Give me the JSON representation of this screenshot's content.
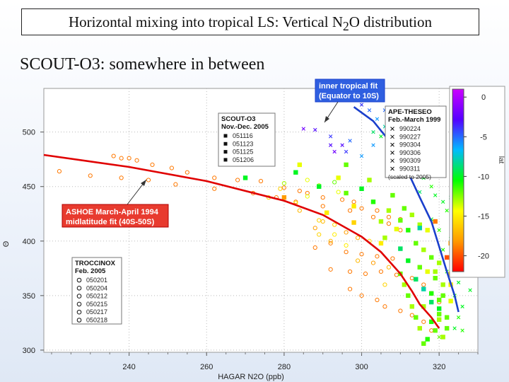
{
  "slide": {
    "title_pre": "Horizontal mixing into tropical LS:  Vertical N",
    "title_sub": "2",
    "title_post": "O distribution",
    "subtitle": "SCOUT-O3:  somewhere in between"
  },
  "chart_data": {
    "type": "scatter",
    "xlabel": "HAGAR N2O (ppb)",
    "ylabel": "Θ",
    "xlim": [
      218,
      330
    ],
    "ylim": [
      298,
      540
    ],
    "xticks": [
      240,
      260,
      280,
      300,
      320
    ],
    "yticks": [
      300,
      350,
      400,
      450,
      500
    ],
    "grid": true,
    "colorbar": {
      "label": "lat",
      "ticks": [
        0,
        -5,
        -10,
        -15,
        -20
      ],
      "range": [
        1,
        -22
      ],
      "colors": [
        "#ff0000",
        "#ff9900",
        "#ffff00",
        "#00ff00",
        "#00bbff",
        "#5500ff",
        "#cc00ff"
      ]
    },
    "fits": [
      {
        "name": "ASHOE March-April 1994\nmidlatitude fit (40S-50S)",
        "color": "#e00000",
        "points": [
          [
            218,
            479
          ],
          [
            240,
            468
          ],
          [
            260,
            455
          ],
          [
            280,
            437
          ],
          [
            290,
            424
          ],
          [
            300,
            404
          ],
          [
            305,
            390
          ],
          [
            310,
            370
          ],
          [
            313,
            354
          ],
          [
            315,
            342
          ],
          [
            318,
            330
          ],
          [
            320,
            320
          ]
        ]
      },
      {
        "name": "inner tropical fit\n(Equator to 10S)",
        "color": "#1a3fcc",
        "points": [
          [
            298,
            523
          ],
          [
            303,
            510
          ],
          [
            308,
            488
          ],
          [
            312,
            463
          ],
          [
            315,
            440
          ],
          [
            318,
            418
          ],
          [
            320,
            395
          ],
          [
            322,
            372
          ],
          [
            324,
            350
          ],
          [
            325,
            335
          ]
        ]
      }
    ],
    "legends": [
      {
        "title": "SCOUT-O3\nNov.-Dec. 2005",
        "marker": "square",
        "entries": [
          "051116",
          "051123",
          "051125",
          "051206"
        ]
      },
      {
        "title": "APE-THESEO\nFeb.-March 1999",
        "marker": "cross",
        "entries": [
          "990224",
          "990227",
          "990304",
          "990306",
          "990309",
          "990311"
        ],
        "note": "(scaled to 2005)"
      },
      {
        "title": "TROCCINOX\nFeb. 2005",
        "marker": "circle",
        "entries": [
          "050201",
          "050204",
          "050212",
          "050215",
          "050217",
          "050218"
        ]
      }
    ],
    "series": [
      {
        "name": "SCOUT-O3",
        "marker": "square",
        "points": [
          [
            313,
            424,
            -13
          ],
          [
            315,
            415,
            -13
          ],
          [
            317,
            410,
            -14
          ],
          [
            314,
            398,
            -12
          ],
          [
            316,
            392,
            -13
          ],
          [
            318,
            385,
            -12
          ],
          [
            320,
            380,
            -13
          ],
          [
            317,
            372,
            -14
          ],
          [
            319,
            366,
            -12
          ],
          [
            321,
            360,
            -13
          ],
          [
            318,
            352,
            -11
          ],
          [
            320,
            346,
            -12
          ],
          [
            316,
            340,
            -13
          ],
          [
            320,
            333,
            -12
          ],
          [
            318,
            326,
            -11
          ],
          [
            322,
            320,
            -12
          ],
          [
            321,
            312,
            -13
          ],
          [
            316,
            306,
            -12
          ],
          [
            309,
            411,
            -14
          ],
          [
            306,
            403,
            -13
          ],
          [
            311,
            430,
            -12
          ],
          [
            303,
            436,
            -11
          ],
          [
            298,
            432,
            -15
          ],
          [
            300,
            448,
            -10
          ],
          [
            294,
            458,
            -14
          ],
          [
            289,
            450,
            -10
          ],
          [
            280,
            440,
            -18
          ],
          [
            296,
            444,
            -12
          ],
          [
            323,
            398,
            -18
          ],
          [
            322,
            385,
            -20
          ],
          [
            323,
            370,
            -17
          ],
          [
            319,
            418,
            -19
          ],
          [
            315,
            412,
            -8
          ],
          [
            310,
            393,
            -9
          ],
          [
            312,
            382,
            -10
          ],
          [
            314,
            365,
            -9
          ],
          [
            316,
            356,
            -8
          ],
          [
            318,
            344,
            -9
          ],
          [
            320,
            338,
            -10
          ],
          [
            312,
            410,
            -11
          ],
          [
            310,
            419,
            -12
          ],
          [
            307,
            428,
            -13
          ],
          [
            305,
            418,
            -13
          ],
          [
            308,
            442,
            -12
          ],
          [
            302,
            456,
            -13
          ],
          [
            296,
            470,
            -12
          ],
          [
            284,
            470,
            -14
          ],
          [
            270,
            458,
            -10
          ],
          [
            283,
            463,
            -10
          ],
          [
            291,
            426,
            -15
          ],
          [
            298,
            417,
            -16
          ],
          [
            305,
            398,
            -15
          ],
          [
            315,
            376,
            -12
          ],
          [
            319,
            372,
            -13
          ],
          [
            321,
            350,
            -12
          ],
          [
            320,
            328,
            -13
          ],
          [
            319,
            318,
            -12
          ],
          [
            317,
            310,
            -11
          ],
          [
            315,
            320,
            -13
          ],
          [
            314,
            330,
            -12
          ],
          [
            313,
            340,
            -13
          ],
          [
            312,
            350,
            -12
          ],
          [
            311,
            360,
            -13
          ],
          [
            310,
            370,
            -12
          ],
          [
            323,
            345,
            -14
          ],
          [
            323,
            360,
            -15
          ],
          [
            322,
            330,
            -12
          ]
        ]
      },
      {
        "name": "APE-THESEO",
        "marker": "cross",
        "points": [
          [
            300,
            525,
            -4
          ],
          [
            302,
            520,
            -5
          ],
          [
            304,
            512,
            -6
          ],
          [
            306,
            505,
            -8
          ],
          [
            303,
            500,
            -9
          ],
          [
            305,
            496,
            -10
          ],
          [
            308,
            492,
            -10
          ],
          [
            310,
            488,
            -11
          ],
          [
            312,
            480,
            -10
          ],
          [
            314,
            470,
            -10
          ],
          [
            313,
            462,
            -11
          ],
          [
            316,
            458,
            -10
          ],
          [
            318,
            450,
            -11
          ],
          [
            319,
            442,
            -10
          ],
          [
            321,
            436,
            -10
          ],
          [
            322,
            428,
            -11
          ],
          [
            318,
            420,
            -10
          ],
          [
            320,
            410,
            -11
          ],
          [
            323,
            402,
            -10
          ],
          [
            321,
            392,
            -11
          ],
          [
            324,
            384,
            -10
          ],
          [
            322,
            372,
            -11
          ],
          [
            325,
            362,
            -10
          ],
          [
            324,
            350,
            -11
          ],
          [
            326,
            340,
            -10
          ],
          [
            325,
            330,
            -11
          ],
          [
            324,
            320,
            -10
          ],
          [
            320,
            312,
            -12
          ],
          [
            297,
            492,
            -5
          ],
          [
            295,
            488,
            -3
          ],
          [
            293,
            482,
            -2
          ],
          [
            292,
            496,
            -4
          ],
          [
            288,
            502,
            -3
          ],
          [
            285,
            503,
            -2
          ],
          [
            309,
            472,
            -8
          ],
          [
            311,
            462,
            -9
          ],
          [
            315,
            445,
            -9
          ],
          [
            300,
            478,
            -6
          ],
          [
            296,
            482,
            -4
          ],
          [
            292,
            488,
            -3
          ],
          [
            303,
            488,
            -6
          ],
          [
            307,
            478,
            -8
          ],
          [
            317,
            462,
            -9
          ],
          [
            316,
            476,
            -9
          ],
          [
            311,
            498,
            -7
          ],
          [
            309,
            515,
            -6
          ],
          [
            306,
            520,
            -5
          ],
          [
            301,
            530,
            -3
          ],
          [
            324,
            455,
            -10
          ],
          [
            326,
            460,
            -10
          ],
          [
            327,
            425,
            -10
          ],
          [
            323,
            440,
            -9
          ],
          [
            328,
            395,
            -10
          ],
          [
            327,
            380,
            -10
          ],
          [
            328,
            355,
            -10
          ],
          [
            326,
            318,
            -11
          ]
        ]
      },
      {
        "name": "TROCCINOX",
        "marker": "circle",
        "points": [
          [
            236,
            478,
            -19
          ],
          [
            238,
            476,
            -19
          ],
          [
            240,
            476,
            -19
          ],
          [
            242,
            474,
            -19
          ],
          [
            246,
            470,
            -19
          ],
          [
            251,
            467,
            -19
          ],
          [
            255,
            463,
            -19
          ],
          [
            262,
            458,
            -19
          ],
          [
            268,
            456,
            -19
          ],
          [
            274,
            455,
            -19
          ],
          [
            280,
            449,
            -19
          ],
          [
            284,
            446,
            -19
          ],
          [
            286,
            444,
            -19
          ],
          [
            290,
            440,
            -19
          ],
          [
            295,
            438,
            -19
          ],
          [
            298,
            436,
            -19
          ],
          [
            300,
            430,
            -19
          ],
          [
            304,
            428,
            -19
          ],
          [
            307,
            422,
            -19
          ],
          [
            310,
            420,
            -19
          ],
          [
            222,
            464,
            -19
          ],
          [
            230,
            460,
            -19
          ],
          [
            238,
            458,
            -19
          ],
          [
            245,
            456,
            -19
          ],
          [
            252,
            452,
            -19
          ],
          [
            262,
            448,
            -19
          ],
          [
            272,
            444,
            -19
          ],
          [
            278,
            440,
            -19
          ],
          [
            283,
            436,
            -19
          ],
          [
            290,
            432,
            -19
          ],
          [
            297,
            428,
            -19
          ],
          [
            303,
            422,
            -19
          ],
          [
            307,
            416,
            -19
          ],
          [
            310,
            410,
            -19
          ],
          [
            288,
            394,
            -19
          ],
          [
            292,
            398,
            -19
          ],
          [
            296,
            390,
            -19
          ],
          [
            300,
            388,
            -19
          ],
          [
            304,
            386,
            -19
          ],
          [
            308,
            384,
            -19
          ],
          [
            312,
            382,
            -19
          ],
          [
            292,
            374,
            -19
          ],
          [
            297,
            372,
            -19
          ],
          [
            301,
            370,
            -19
          ],
          [
            305,
            372,
            -19
          ],
          [
            309,
            369,
            -19
          ],
          [
            313,
            366,
            -19
          ],
          [
            316,
            360,
            -19
          ],
          [
            318,
            352,
            -19
          ],
          [
            320,
            344,
            -19
          ],
          [
            297,
            356,
            -19
          ],
          [
            300,
            350,
            -19
          ],
          [
            304,
            346,
            -19
          ],
          [
            306,
            340,
            -19
          ],
          [
            310,
            336,
            -19
          ],
          [
            313,
            332,
            -19
          ],
          [
            316,
            326,
            -19
          ],
          [
            318,
            318,
            -19
          ],
          [
            288,
            412,
            -18
          ],
          [
            290,
            418,
            -17
          ],
          [
            293,
            415,
            -16
          ],
          [
            296,
            408,
            -18
          ],
          [
            299,
            403,
            -17
          ],
          [
            302,
            400,
            -16
          ],
          [
            276,
            440,
            -16
          ],
          [
            279,
            448,
            -16
          ],
          [
            283,
            435,
            -15
          ],
          [
            286,
            441,
            -14
          ],
          [
            289,
            451,
            -13
          ],
          [
            293,
            454,
            -12
          ],
          [
            294,
            445,
            -14
          ],
          [
            286,
            456,
            -14
          ],
          [
            280,
            453,
            -13
          ],
          [
            284,
            428,
            -17
          ],
          [
            289,
            406,
            -16
          ],
          [
            292,
            400,
            -17
          ],
          [
            296,
            396,
            -15
          ],
          [
            299,
            382,
            -17
          ],
          [
            303,
            380,
            -18
          ],
          [
            307,
            376,
            -17
          ],
          [
            289,
            419,
            -16
          ],
          [
            293,
            406,
            -15
          ],
          [
            306,
            360,
            -16
          ]
        ]
      }
    ]
  }
}
